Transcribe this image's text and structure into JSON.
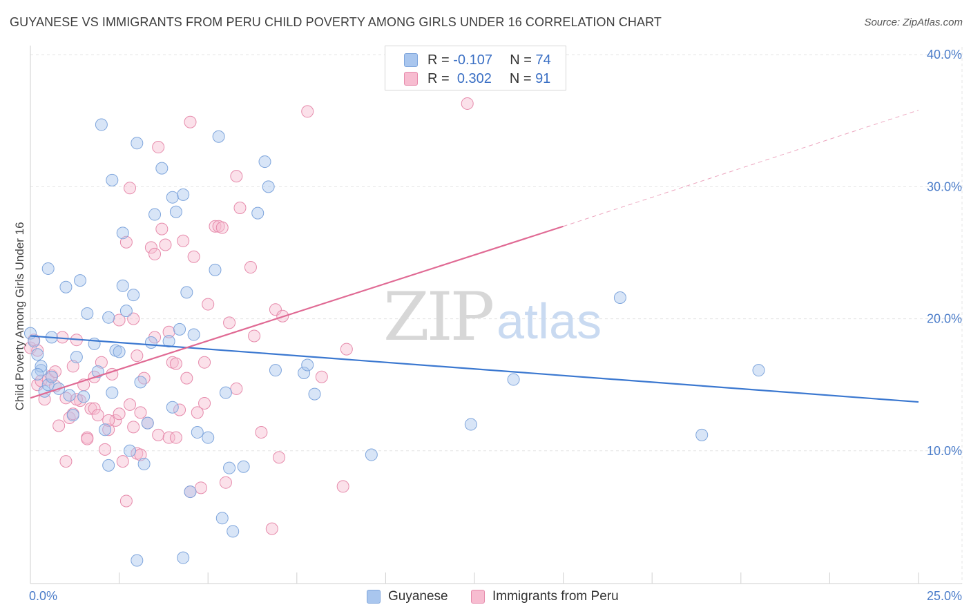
{
  "header": {
    "title": "GUYANESE VS IMMIGRANTS FROM PERU CHILD POVERTY AMONG GIRLS UNDER 16 CORRELATION CHART",
    "source": "Source: ZipAtlas.com"
  },
  "watermark": {
    "zip": "ZIP",
    "atlas": "atlas"
  },
  "legend": {
    "rows": [
      {
        "r_label": "R =",
        "r_value": "-0.107",
        "n_label": "N =",
        "n_value": "74",
        "color": "#a9c6ee",
        "border": "#7ea5dc"
      },
      {
        "r_label": "R =",
        "r_value": "0.302",
        "n_label": "N =",
        "n_value": "91",
        "color": "#f7bcd0",
        "border": "#e68aab"
      }
    ]
  },
  "bottom_legend": [
    {
      "label": "Guyanese",
      "color": "#a9c6ee",
      "border": "#7ea5dc"
    },
    {
      "label": "Immigrants from Peru",
      "color": "#f7bcd0",
      "border": "#e68aab"
    }
  ],
  "chart_data": {
    "type": "scatter",
    "ylabel": "Child Poverty Among Girls Under 16",
    "xlim": [
      0,
      25
    ],
    "ylim": [
      0,
      40
    ],
    "x_ticks": [
      "0.0%",
      "25.0%"
    ],
    "y_ticks": [
      {
        "value": 10,
        "label": "10.0%"
      },
      {
        "value": 20,
        "label": "20.0%"
      },
      {
        "value": 30,
        "label": "30.0%"
      },
      {
        "value": 40,
        "label": "40.0%"
      }
    ],
    "grid": true,
    "legend_position": "top-center",
    "series": [
      {
        "name": "Guyanese",
        "color": "#a9c6ee",
        "stroke": "#7ea5dc",
        "line_color": "#3b78d0",
        "trend": {
          "x0": 0,
          "y0": 18.7,
          "x1": 25,
          "y1": 13.7
        },
        "points": [
          [
            0.0,
            18.9
          ],
          [
            0.1,
            18.3
          ],
          [
            0.2,
            17.3
          ],
          [
            0.3,
            16.1
          ],
          [
            0.3,
            16.4
          ],
          [
            0.4,
            14.5
          ],
          [
            0.5,
            15.0
          ],
          [
            0.6,
            15.6
          ],
          [
            0.8,
            14.7
          ],
          [
            1.1,
            14.2
          ],
          [
            1.2,
            12.7
          ],
          [
            1.3,
            17.1
          ],
          [
            1.4,
            22.9
          ],
          [
            1.6,
            20.4
          ],
          [
            1.8,
            18.1
          ],
          [
            1.9,
            16.0
          ],
          [
            2.0,
            34.7
          ],
          [
            2.1,
            11.6
          ],
          [
            2.2,
            20.1
          ],
          [
            2.2,
            8.9
          ],
          [
            2.3,
            14.4
          ],
          [
            2.3,
            30.5
          ],
          [
            2.4,
            17.6
          ],
          [
            2.5,
            17.5
          ],
          [
            2.6,
            22.5
          ],
          [
            2.6,
            26.5
          ],
          [
            2.7,
            20.6
          ],
          [
            2.8,
            10.0
          ],
          [
            2.9,
            21.8
          ],
          [
            3.0,
            33.3
          ],
          [
            3.1,
            15.2
          ],
          [
            3.2,
            9.0
          ],
          [
            3.3,
            12.1
          ],
          [
            3.4,
            18.2
          ],
          [
            3.5,
            27.9
          ],
          [
            3.7,
            31.4
          ],
          [
            3.9,
            18.3
          ],
          [
            4.0,
            29.2
          ],
          [
            4.1,
            28.1
          ],
          [
            4.2,
            19.2
          ],
          [
            4.3,
            29.4
          ],
          [
            4.3,
            1.9
          ],
          [
            4.4,
            22.0
          ],
          [
            4.5,
            6.9
          ],
          [
            4.6,
            18.8
          ],
          [
            4.7,
            11.4
          ],
          [
            5.0,
            11.0
          ],
          [
            5.2,
            23.7
          ],
          [
            5.3,
            33.8
          ],
          [
            5.4,
            4.9
          ],
          [
            5.5,
            14.4
          ],
          [
            5.6,
            8.7
          ],
          [
            5.7,
            3.9
          ],
          [
            6.0,
            8.8
          ],
          [
            6.4,
            28.0
          ],
          [
            6.6,
            31.9
          ],
          [
            6.7,
            30.0
          ],
          [
            6.9,
            16.1
          ],
          [
            7.7,
            15.9
          ],
          [
            7.8,
            16.5
          ],
          [
            8.0,
            14.3
          ],
          [
            9.6,
            9.7
          ],
          [
            12.4,
            12.0
          ],
          [
            13.6,
            15.4
          ],
          [
            16.6,
            21.6
          ],
          [
            18.9,
            11.2
          ],
          [
            20.5,
            16.1
          ],
          [
            0.2,
            15.8
          ],
          [
            0.5,
            23.8
          ],
          [
            0.6,
            18.6
          ],
          [
            1.0,
            22.4
          ],
          [
            1.5,
            14.1
          ],
          [
            3.0,
            1.7
          ],
          [
            4.0,
            13.3
          ]
        ]
      },
      {
        "name": "Immigrants from Peru",
        "color": "#f7bcd0",
        "stroke": "#e68aab",
        "line_color": "#e06a94",
        "trend": {
          "x0": 0,
          "y0": 14.0,
          "x1": 15,
          "y1": 27.0
        },
        "trend_dashed": {
          "x0": 15,
          "y0": 27.0,
          "x1": 25,
          "y1": 35.8
        },
        "points": [
          [
            0.0,
            17.8
          ],
          [
            0.1,
            18.4
          ],
          [
            0.2,
            15.0
          ],
          [
            0.3,
            15.3
          ],
          [
            0.4,
            13.9
          ],
          [
            0.5,
            15.4
          ],
          [
            0.6,
            15.7
          ],
          [
            0.7,
            16.0
          ],
          [
            0.8,
            11.9
          ],
          [
            0.9,
            18.6
          ],
          [
            1.0,
            9.2
          ],
          [
            1.0,
            14.0
          ],
          [
            1.1,
            12.5
          ],
          [
            1.2,
            16.4
          ],
          [
            1.3,
            18.4
          ],
          [
            1.4,
            13.8
          ],
          [
            1.5,
            15.0
          ],
          [
            1.6,
            11.0
          ],
          [
            1.7,
            13.2
          ],
          [
            1.8,
            13.2
          ],
          [
            1.9,
            12.7
          ],
          [
            2.0,
            16.7
          ],
          [
            2.1,
            10.1
          ],
          [
            2.2,
            11.6
          ],
          [
            2.3,
            15.8
          ],
          [
            2.4,
            12.3
          ],
          [
            2.5,
            12.8
          ],
          [
            2.6,
            9.2
          ],
          [
            2.7,
            6.2
          ],
          [
            2.7,
            25.8
          ],
          [
            2.8,
            13.5
          ],
          [
            2.8,
            29.9
          ],
          [
            2.9,
            20.0
          ],
          [
            3.0,
            9.8
          ],
          [
            3.0,
            17.2
          ],
          [
            3.1,
            12.9
          ],
          [
            3.2,
            15.5
          ],
          [
            3.3,
            12.1
          ],
          [
            3.4,
            25.4
          ],
          [
            3.5,
            18.6
          ],
          [
            3.6,
            11.2
          ],
          [
            3.6,
            33.0
          ],
          [
            3.7,
            26.8
          ],
          [
            3.8,
            25.6
          ],
          [
            3.9,
            11.0
          ],
          [
            4.0,
            16.7
          ],
          [
            4.1,
            16.6
          ],
          [
            4.2,
            13.1
          ],
          [
            4.3,
            25.9
          ],
          [
            4.4,
            15.5
          ],
          [
            4.5,
            34.9
          ],
          [
            4.5,
            6.9
          ],
          [
            4.6,
            24.7
          ],
          [
            4.7,
            12.9
          ],
          [
            4.8,
            7.2
          ],
          [
            4.9,
            16.7
          ],
          [
            5.0,
            21.1
          ],
          [
            5.2,
            27.0
          ],
          [
            5.3,
            27.0
          ],
          [
            5.5,
            7.6
          ],
          [
            5.6,
            19.7
          ],
          [
            5.8,
            14.7
          ],
          [
            5.8,
            30.8
          ],
          [
            5.9,
            28.4
          ],
          [
            6.2,
            23.9
          ],
          [
            6.3,
            18.7
          ],
          [
            6.5,
            11.4
          ],
          [
            6.8,
            4.1
          ],
          [
            6.9,
            20.7
          ],
          [
            7.0,
            9.5
          ],
          [
            7.1,
            20.2
          ],
          [
            7.8,
            35.7
          ],
          [
            8.2,
            15.6
          ],
          [
            8.8,
            7.3
          ],
          [
            8.9,
            17.7
          ],
          [
            12.3,
            36.3
          ],
          [
            0.2,
            17.6
          ],
          [
            1.2,
            12.8
          ],
          [
            1.6,
            10.9
          ],
          [
            2.5,
            19.9
          ],
          [
            3.1,
            9.7
          ],
          [
            3.5,
            24.9
          ],
          [
            4.1,
            11.0
          ],
          [
            5.4,
            26.9
          ],
          [
            1.8,
            15.6
          ],
          [
            0.7,
            14.9
          ],
          [
            2.2,
            12.3
          ],
          [
            3.9,
            19.0
          ],
          [
            2.9,
            11.8
          ],
          [
            4.9,
            13.6
          ],
          [
            1.3,
            13.9
          ]
        ]
      }
    ]
  }
}
